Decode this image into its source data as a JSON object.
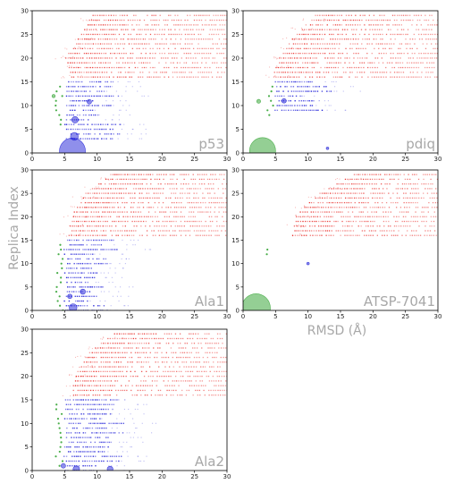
{
  "axes": {
    "xlabel": "RMSD (Å)",
    "ylabel": "Replica Index"
  },
  "colors": {
    "red": "#e8231f",
    "blue": "#2020d8",
    "green": "#2aa02a",
    "panel_label": "#a8a8a8"
  },
  "chart_data": [
    {
      "type": "scatter",
      "title": "p53",
      "xlim": [
        0,
        30
      ],
      "ylim": [
        0,
        30
      ],
      "xticks": [
        0,
        5,
        10,
        15,
        20,
        25,
        30
      ],
      "yticks": [
        0,
        5,
        10,
        15,
        20,
        25,
        30
      ],
      "blue_rows": [
        3,
        15
      ],
      "red_rows": [
        16,
        29
      ],
      "green_rows": [
        6,
        14
      ],
      "row_starts": {
        "16": 5.8,
        "20": 5.0,
        "25": 7.5,
        "29": 9.0
      },
      "bubbles": [
        {
          "x": 6.2,
          "y": 0.4,
          "r": 2.0,
          "color": "blue"
        },
        {
          "x": 6.5,
          "y": 3.5,
          "r": 0.6,
          "color": "blue"
        },
        {
          "x": 6.6,
          "y": 7.0,
          "r": 0.5,
          "color": "blue"
        },
        {
          "x": 8.8,
          "y": 10.8,
          "r": 0.35,
          "color": "blue"
        },
        {
          "x": 3.3,
          "y": 12.0,
          "r": 0.25,
          "color": "green"
        }
      ]
    },
    {
      "type": "scatter",
      "title": "pdiq",
      "xlim": [
        0,
        30
      ],
      "ylim": [
        0,
        30
      ],
      "xticks": [
        0,
        5,
        10,
        15,
        20,
        25,
        30
      ],
      "yticks": [
        0,
        5,
        10,
        15,
        20,
        25,
        30
      ],
      "blue_rows": [
        9,
        15
      ],
      "red_rows": [
        16,
        29
      ],
      "green_rows": [
        8,
        14
      ],
      "row_starts": {
        "16": 4.5,
        "20": 5.5,
        "25": 8.0,
        "29": 11.0
      },
      "bubbles": [
        {
          "x": 3.0,
          "y": 0.5,
          "r": 2.0,
          "color": "green"
        },
        {
          "x": 6.3,
          "y": 11.0,
          "r": 0.35,
          "color": "blue"
        },
        {
          "x": 2.4,
          "y": 10.9,
          "r": 0.3,
          "color": "green"
        },
        {
          "x": 13.0,
          "y": 1.0,
          "r": 0.2,
          "color": "blue"
        }
      ]
    },
    {
      "type": "scatter",
      "title": "Ala1",
      "xlim": [
        0,
        30
      ],
      "ylim": [
        0,
        30
      ],
      "xticks": [
        0,
        5,
        10,
        15,
        20,
        25,
        30
      ],
      "yticks": [
        0,
        5,
        10,
        15,
        20,
        25,
        30
      ],
      "blue_rows": [
        0,
        15
      ],
      "red_rows": [
        16,
        29
      ],
      "green_rows": [
        0,
        14
      ],
      "row_starts": {
        "16": 5.5,
        "20": 6.0,
        "25": 8.0,
        "29": 12.0
      },
      "bubbles": [
        {
          "x": 6.3,
          "y": 0.6,
          "r": 0.6,
          "color": "blue"
        },
        {
          "x": 7.8,
          "y": 4.0,
          "r": 0.4,
          "color": "blue"
        },
        {
          "x": 5.8,
          "y": 3.0,
          "r": 0.35,
          "color": "blue"
        }
      ]
    },
    {
      "type": "scatter",
      "title": "ATSP-7041",
      "xlim": [
        0,
        30
      ],
      "ylim": [
        0,
        30
      ],
      "xticks": [
        0,
        5,
        10,
        15,
        20,
        25,
        30
      ],
      "yticks": [
        0,
        5,
        10,
        15,
        20,
        25,
        30
      ],
      "blue_rows": [],
      "red_rows": [
        16,
        29
      ],
      "green_rows": [
        12,
        13
      ],
      "row_starts": {
        "16": 7.5,
        "20": 8.0,
        "25": 11.5,
        "29": 17.0
      },
      "bubbles": [
        {
          "x": 2.0,
          "y": 0.5,
          "r": 2.2,
          "color": "green"
        },
        {
          "x": 10.0,
          "y": 10.0,
          "r": 0.2,
          "color": "blue"
        }
      ]
    },
    {
      "type": "scatter",
      "title": "Ala2",
      "xlim": [
        0,
        30
      ],
      "ylim": [
        0,
        30
      ],
      "xticks": [
        0,
        5,
        10,
        15,
        20,
        25,
        30
      ],
      "yticks": [
        0,
        5,
        10,
        15,
        20,
        25,
        30
      ],
      "blue_rows": [
        0,
        15
      ],
      "red_rows": [
        16,
        29
      ],
      "green_rows": [
        1,
        14
      ],
      "row_starts": {
        "16": 6.0,
        "20": 6.5,
        "25": 8.5,
        "29": 12.5
      },
      "bubbles": [
        {
          "x": 6.8,
          "y": 0.3,
          "r": 0.5,
          "color": "blue"
        },
        {
          "x": 12.0,
          "y": 0.3,
          "r": 0.45,
          "color": "blue"
        },
        {
          "x": 4.8,
          "y": 1.0,
          "r": 0.35,
          "color": "blue"
        }
      ]
    }
  ]
}
